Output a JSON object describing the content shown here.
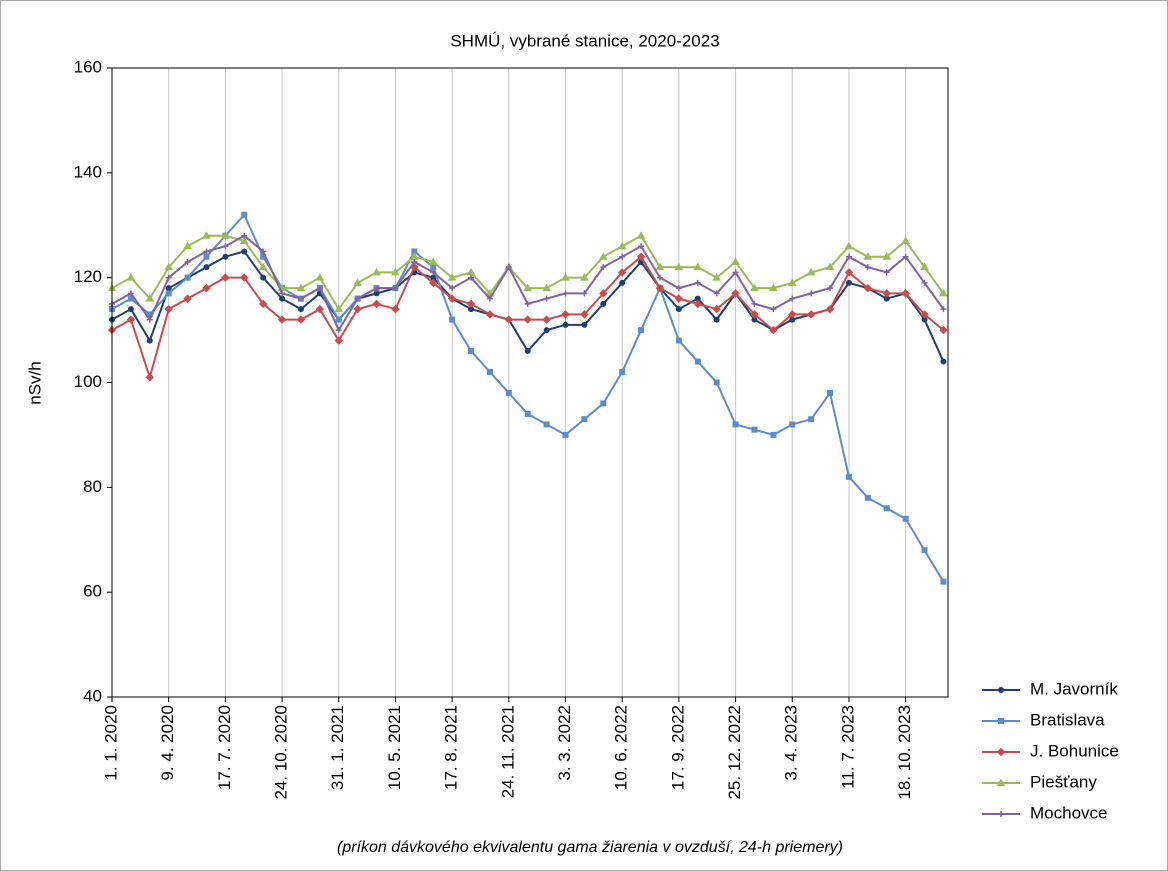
{
  "chart_data": {
    "type": "line",
    "title": "SHMÚ, vybrané stanice, 2020-2023",
    "y_label": "nSv/h",
    "caption": "(príkon dávkového ekvivalentu gama žiarenia v ovzduší, 24-h priemery)",
    "x": [
      "2020-01-01",
      "2020-02-03",
      "2020-03-07",
      "2020-04-09",
      "2020-05-12",
      "2020-06-14",
      "2020-07-17",
      "2020-08-19",
      "2020-09-21",
      "2020-10-24",
      "2020-11-26",
      "2020-12-29",
      "2021-01-31",
      "2021-03-05",
      "2021-04-07",
      "2021-05-10",
      "2021-06-12",
      "2021-07-15",
      "2021-08-17",
      "2021-09-19",
      "2021-10-22",
      "2021-11-24",
      "2021-12-27",
      "2022-01-29",
      "2022-03-03",
      "2022-04-05",
      "2022-05-08",
      "2022-06-10",
      "2022-07-13",
      "2022-08-15",
      "2022-09-17",
      "2022-10-20",
      "2022-11-22",
      "2022-12-25",
      "2023-01-27",
      "2023-03-01",
      "2023-04-03",
      "2023-05-06",
      "2023-06-08",
      "2023-07-11",
      "2023-08-13",
      "2023-09-15",
      "2023-10-18",
      "2023-11-20",
      "2023-12-23"
    ],
    "series": [
      {
        "name": "M. Javorník",
        "color": "#1f3f73",
        "marker": "circle",
        "values": [
          112,
          114,
          108,
          118,
          120,
          122,
          124,
          125,
          120,
          116,
          114,
          117,
          112,
          116,
          117,
          118,
          121,
          120,
          116,
          114,
          113,
          112,
          106,
          110,
          111,
          111,
          115,
          119,
          123,
          118,
          114,
          116,
          112,
          117,
          112,
          110,
          112,
          113,
          114,
          119,
          118,
          116,
          117,
          112,
          104
        ]
      },
      {
        "name": "Bratislava",
        "color": "#5b8dc9",
        "marker": "square",
        "values": [
          114,
          116,
          113,
          117,
          120,
          124,
          128,
          132,
          124,
          118,
          116,
          118,
          112,
          116,
          118,
          118,
          125,
          122,
          112,
          106,
          102,
          98,
          94,
          92,
          90,
          93,
          96,
          102,
          110,
          118,
          108,
          104,
          100,
          92,
          91,
          90,
          92,
          93,
          98,
          82,
          78,
          76,
          74,
          68,
          62
        ]
      },
      {
        "name": "J. Bohunice",
        "color": "#c94c4c",
        "marker": "diamond",
        "values": [
          110,
          112,
          101,
          114,
          116,
          118,
          120,
          120,
          115,
          112,
          112,
          114,
          108,
          114,
          115,
          114,
          122,
          119,
          116,
          115,
          113,
          112,
          112,
          112,
          113,
          113,
          117,
          121,
          124,
          118,
          116,
          115,
          114,
          117,
          113,
          110,
          113,
          113,
          114,
          121,
          118,
          117,
          117,
          113,
          110
        ]
      },
      {
        "name": "Piešťany",
        "color": "#9bbb59",
        "marker": "triangle",
        "values": [
          118,
          120,
          116,
          122,
          126,
          128,
          128,
          127,
          122,
          118,
          118,
          120,
          114,
          119,
          121,
          121,
          124,
          123,
          120,
          121,
          117,
          122,
          118,
          118,
          120,
          120,
          124,
          126,
          128,
          122,
          122,
          122,
          120,
          123,
          118,
          118,
          119,
          121,
          122,
          126,
          124,
          124,
          127,
          122,
          117
        ]
      },
      {
        "name": "Mochovce",
        "color": "#8064a2",
        "marker": "cross",
        "values": [
          115,
          117,
          112,
          120,
          123,
          125,
          126,
          128,
          125,
          117,
          116,
          118,
          110,
          116,
          118,
          118,
          123,
          121,
          118,
          120,
          116,
          122,
          115,
          116,
          117,
          117,
          122,
          124,
          126,
          120,
          118,
          119,
          117,
          121,
          115,
          114,
          116,
          117,
          118,
          124,
          122,
          121,
          124,
          119,
          114
        ]
      }
    ],
    "xlim": [
      "2020-01-01",
      "2023-12-31"
    ],
    "xticks": [
      {
        "value": "2020-01-01",
        "label": "1. 1. 2020"
      },
      {
        "value": "2020-04-09",
        "label": "9. 4. 2020"
      },
      {
        "value": "2020-07-17",
        "label": "17. 7. 2020"
      },
      {
        "value": "2020-10-24",
        "label": "24. 10. 2020"
      },
      {
        "value": "2021-01-31",
        "label": "31. 1. 2021"
      },
      {
        "value": "2021-05-10",
        "label": "10. 5. 2021"
      },
      {
        "value": "2021-08-17",
        "label": "17. 8. 2021"
      },
      {
        "value": "2021-11-24",
        "label": "24. 11. 2021"
      },
      {
        "value": "2022-03-03",
        "label": "3. 3. 2022"
      },
      {
        "value": "2022-06-10",
        "label": "10. 6. 2022"
      },
      {
        "value": "2022-09-17",
        "label": "17. 9. 2022"
      },
      {
        "value": "2022-12-25",
        "label": "25. 12. 2022"
      },
      {
        "value": "2023-04-03",
        "label": "3. 4. 2023"
      },
      {
        "value": "2023-07-11",
        "label": "11. 7. 2023"
      },
      {
        "value": "2023-10-18",
        "label": "18. 10. 2023"
      }
    ],
    "ylim": [
      40,
      160
    ],
    "yticks": [
      40,
      60,
      80,
      100,
      120,
      140,
      160
    ],
    "grid": "x",
    "legend": "bottom-right"
  }
}
